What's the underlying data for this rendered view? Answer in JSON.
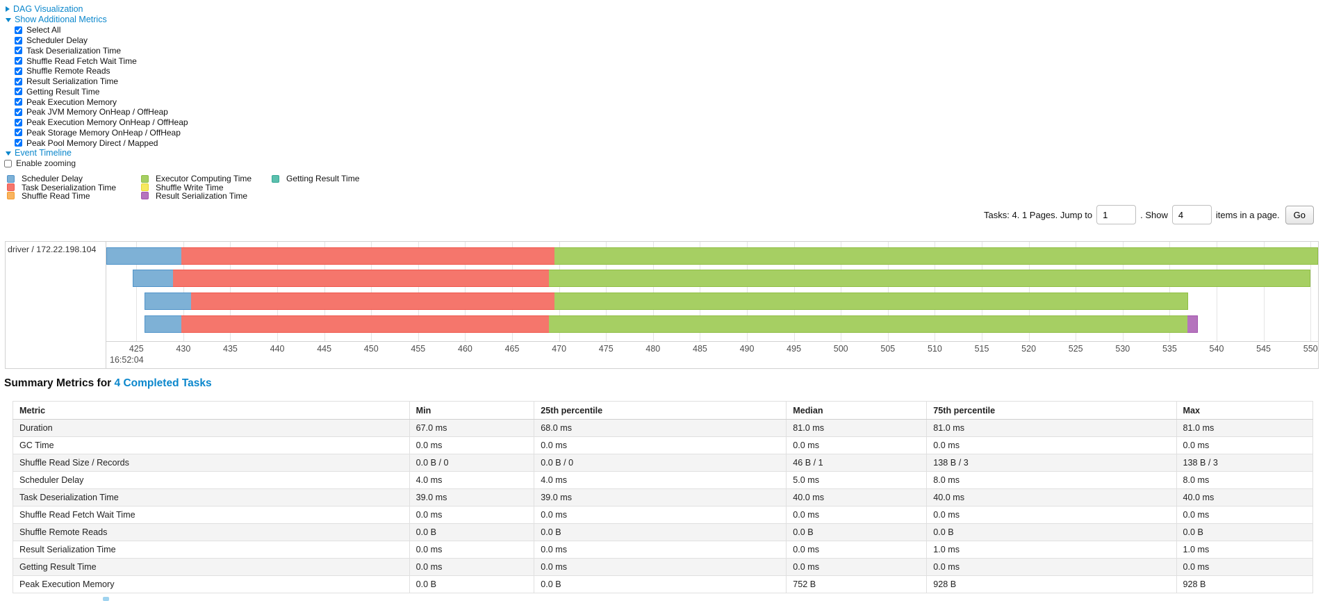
{
  "sections": {
    "dag": {
      "label": "DAG Visualization",
      "state": "collapsed"
    },
    "metrics": {
      "label": "Show Additional Metrics",
      "state": "expanded"
    },
    "timeline": {
      "label": "Event Timeline",
      "state": "expanded"
    }
  },
  "metric_checkboxes": [
    {
      "label": "Select All",
      "checked": true
    },
    {
      "label": "Scheduler Delay",
      "checked": true
    },
    {
      "label": "Task Deserialization Time",
      "checked": true
    },
    {
      "label": "Shuffle Read Fetch Wait Time",
      "checked": true
    },
    {
      "label": "Shuffle Remote Reads",
      "checked": true
    },
    {
      "label": "Result Serialization Time",
      "checked": true
    },
    {
      "label": "Getting Result Time",
      "checked": true
    },
    {
      "label": "Peak Execution Memory",
      "checked": true
    },
    {
      "label": "Peak JVM Memory OnHeap / OffHeap",
      "checked": true
    },
    {
      "label": "Peak Execution Memory OnHeap / OffHeap",
      "checked": true
    },
    {
      "label": "Peak Storage Memory OnHeap / OffHeap",
      "checked": true
    },
    {
      "label": "Peak Pool Memory Direct / Mapped",
      "checked": true
    }
  ],
  "enable_zooming": {
    "label": "Enable zooming",
    "checked": false
  },
  "legend": {
    "columns": [
      [
        {
          "name": "scheduler-delay",
          "label": "Scheduler Delay"
        },
        {
          "name": "task-deserialization",
          "label": "Task Deserialization Time"
        },
        {
          "name": "shuffle-read",
          "label": "Shuffle Read Time"
        }
      ],
      [
        {
          "name": "executor-computing",
          "label": "Executor Computing Time"
        },
        {
          "name": "shuffle-write",
          "label": "Shuffle Write Time"
        },
        {
          "name": "result-serialization",
          "label": "Result Serialization Time"
        }
      ],
      [
        {
          "name": "getting-result",
          "label": "Getting Result Time"
        }
      ]
    ]
  },
  "pagination": {
    "prefix": "Tasks: 4. 1 Pages. Jump to",
    "jump_value": "1",
    "show_label": ". Show",
    "show_value": "4",
    "suffix": "items in a page.",
    "go_label": "Go"
  },
  "chart_data": {
    "type": "bar",
    "subtype": "task-event-timeline-gantt",
    "group_label": "driver / 172.22.198.104",
    "x_axis": {
      "unit": "milliseconds within second 16:52:04",
      "xlim": [
        421.8,
        550.8
      ],
      "ticks": [
        425,
        430,
        435,
        440,
        445,
        450,
        455,
        460,
        465,
        470,
        475,
        480,
        485,
        490,
        495,
        500,
        505,
        510,
        515,
        520,
        525,
        530,
        535,
        540,
        545,
        550
      ],
      "major_label": "16:52:04",
      "grid": true
    },
    "series_colors": {
      "scheduler-delay": {
        "fill": "#7EB1D6",
        "border": "#4F93C9"
      },
      "task-deserialization": {
        "fill": "#F5766C",
        "border": "#EF564B"
      },
      "shuffle-read": {
        "fill": "#F9B45F",
        "border": "#F39A2E"
      },
      "executor-computing": {
        "fill": "#A6CF63",
        "border": "#8FBE44"
      },
      "shuffle-write": {
        "fill": "#F6E95F",
        "border": "#E8D630"
      },
      "result-serialization": {
        "fill": "#B574BD",
        "border": "#A254AC"
      },
      "getting-result": {
        "fill": "#5BC0AE",
        "border": "#35A894"
      }
    },
    "tasks": [
      {
        "segments": [
          {
            "name": "scheduler-delay",
            "start": 421.8,
            "end": 429.8
          },
          {
            "name": "task-deserialization",
            "start": 429.8,
            "end": 469.5
          },
          {
            "name": "executor-computing",
            "start": 469.5,
            "end": 550.8
          }
        ]
      },
      {
        "segments": [
          {
            "name": "scheduler-delay",
            "start": 424.6,
            "end": 428.9
          },
          {
            "name": "task-deserialization",
            "start": 428.9,
            "end": 468.9
          },
          {
            "name": "executor-computing",
            "start": 468.9,
            "end": 550.0
          }
        ]
      },
      {
        "segments": [
          {
            "name": "scheduler-delay",
            "start": 425.9,
            "end": 430.8
          },
          {
            "name": "task-deserialization",
            "start": 430.8,
            "end": 469.5
          },
          {
            "name": "executor-computing",
            "start": 469.5,
            "end": 537.0
          }
        ]
      },
      {
        "segments": [
          {
            "name": "scheduler-delay",
            "start": 425.9,
            "end": 429.8
          },
          {
            "name": "task-deserialization",
            "start": 429.8,
            "end": 468.9
          },
          {
            "name": "executor-computing",
            "start": 468.9,
            "end": 536.9
          },
          {
            "name": "result-serialization",
            "start": 536.9,
            "end": 538.0
          }
        ]
      }
    ]
  },
  "summary": {
    "title_prefix": "Summary Metrics for",
    "title_link": "4 Completed Tasks",
    "table": {
      "headers": [
        "Metric",
        "Min",
        "25th percentile",
        "Median",
        "75th percentile",
        "Max"
      ],
      "col_widths_pct": [
        30.5,
        9.6,
        19.4,
        10.8,
        19.2,
        10.5
      ],
      "rows": [
        [
          "Duration",
          "67.0 ms",
          "68.0 ms",
          "81.0 ms",
          "81.0 ms",
          "81.0 ms"
        ],
        [
          "GC Time",
          "0.0 ms",
          "0.0 ms",
          "0.0 ms",
          "0.0 ms",
          "0.0 ms"
        ],
        [
          "Shuffle Read Size / Records",
          "0.0 B / 0",
          "0.0 B / 0",
          "46 B / 1",
          "138 B / 3",
          "138 B / 3"
        ],
        [
          "Scheduler Delay",
          "4.0 ms",
          "4.0 ms",
          "5.0 ms",
          "8.0 ms",
          "8.0 ms"
        ],
        [
          "Task Deserialization Time",
          "39.0 ms",
          "39.0 ms",
          "40.0 ms",
          "40.0 ms",
          "40.0 ms"
        ],
        [
          "Shuffle Read Fetch Wait Time",
          "0.0 ms",
          "0.0 ms",
          "0.0 ms",
          "0.0 ms",
          "0.0 ms"
        ],
        [
          "Shuffle Remote Reads",
          "0.0 B",
          "0.0 B",
          "0.0 B",
          "0.0 B",
          "0.0 B"
        ],
        [
          "Result Serialization Time",
          "0.0 ms",
          "0.0 ms",
          "0.0 ms",
          "1.0 ms",
          "1.0 ms"
        ],
        [
          "Getting Result Time",
          "0.0 ms",
          "0.0 ms",
          "0.0 ms",
          "0.0 ms",
          "0.0 ms"
        ],
        [
          "Peak Execution Memory",
          "0.0 B",
          "0.0 B",
          "752 B",
          "928 B",
          "928 B"
        ]
      ]
    }
  },
  "colors": {
    "link": "#0b87cc",
    "grid": "#e4e4e4",
    "chart_border": "#d2d2d2"
  }
}
